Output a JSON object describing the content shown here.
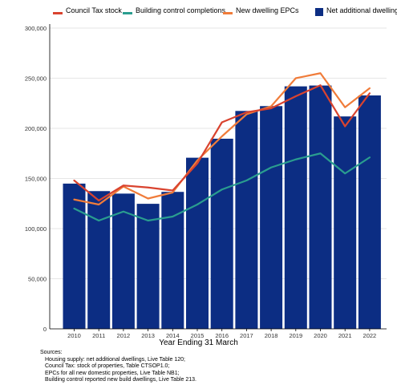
{
  "chart_data": {
    "type": "bar",
    "title": "",
    "xlabel": "Year Ending 31 March",
    "ylabel": "",
    "categories": [
      "2010",
      "2011",
      "2012",
      "2013",
      "2014",
      "2015",
      "2016",
      "2017",
      "2018",
      "2019",
      "2020",
      "2021",
      "2022"
    ],
    "ylim": [
      0,
      300000
    ],
    "yticks": [
      0,
      50000,
      100000,
      150000,
      200000,
      250000,
      300000
    ],
    "ytick_labels": [
      "0",
      "50,000",
      "100,000",
      "150,000",
      "200,000",
      "250,000",
      "300,000"
    ],
    "grid": true,
    "legend_position": "top",
    "bars": {
      "name": "Net additional dwellings",
      "color": "#0c2d83",
      "values": [
        144870,
        137390,
        134900,
        124720,
        136610,
        170690,
        189650,
        217350,
        222190,
        241880,
        242700,
        211870,
        232820
      ]
    },
    "series": [
      {
        "name": "Council Tax stock",
        "color": "#d9432f",
        "values": [
          148000,
          128000,
          143000,
          141000,
          138000,
          165000,
          206000,
          216000,
          220000,
          232000,
          243000,
          202000,
          235000
        ]
      },
      {
        "name": "Building control completions",
        "color": "#2a9d8f",
        "values": [
          120000,
          108000,
          117000,
          108000,
          112000,
          124000,
          139000,
          148000,
          161000,
          169000,
          175000,
          155000,
          171000
        ]
      },
      {
        "name": "New dwelling EPCs",
        "color": "#f07c3a",
        "values": [
          129000,
          124000,
          142000,
          130000,
          136000,
          168000,
          192000,
          214000,
          222000,
          250000,
          255000,
          221000,
          240000
        ]
      }
    ]
  },
  "sources": {
    "heading": "Sources:",
    "lines": [
      "Housing supply: net additional dwellings, Live Table 120;",
      "Council Tax: stock of properties, Table CTSOP1.0;",
      "EPCs for all new domestic properties, Live Table NB1;",
      "Building control reported new build dwellings, Live Table 213."
    ]
  }
}
